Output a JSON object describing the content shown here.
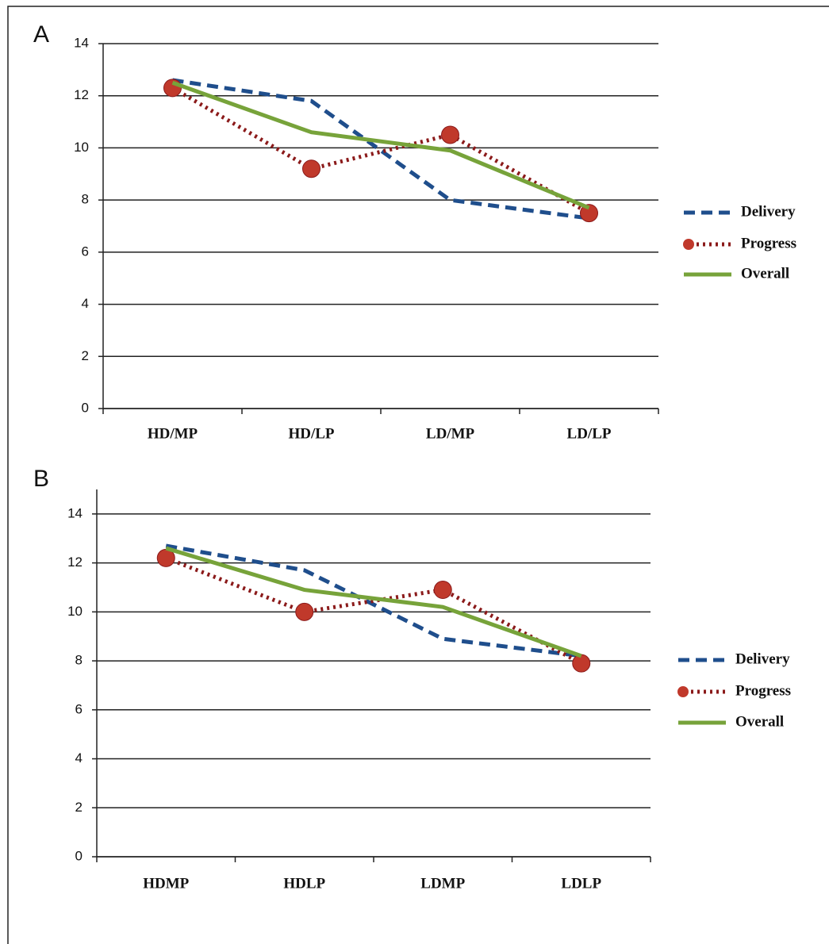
{
  "chart_data": [
    {
      "type": "line",
      "title": "A",
      "categories": [
        "HD/MP",
        "HD/LP",
        "LD/MP",
        "LD/LP"
      ],
      "series": [
        {
          "name": "Delivery",
          "color": "#1f4e8c",
          "dash": "dashed",
          "marker": "none",
          "values": [
            12.6,
            11.8,
            8.0,
            7.3
          ]
        },
        {
          "name": "Progress",
          "color": "#8b1a1a",
          "dash": "dotted",
          "marker": "circle",
          "values": [
            12.3,
            9.2,
            10.5,
            7.5
          ]
        },
        {
          "name": "Overall",
          "color": "#77a33a",
          "dash": "solid",
          "marker": "none",
          "values": [
            12.5,
            10.6,
            9.9,
            7.7
          ]
        }
      ],
      "ylim": [
        0,
        14
      ],
      "yticks": [
        0,
        2,
        4,
        6,
        8,
        10,
        12,
        14
      ],
      "grid": true,
      "legend": "right"
    },
    {
      "type": "line",
      "title": "B",
      "categories": [
        "HDMP",
        "HDLP",
        "LDMP",
        "LDLP"
      ],
      "series": [
        {
          "name": "Delivery",
          "color": "#1f4e8c",
          "dash": "dashed",
          "marker": "none",
          "values": [
            12.7,
            11.7,
            8.9,
            8.2
          ]
        },
        {
          "name": "Progress",
          "color": "#8b1a1a",
          "dash": "dotted",
          "marker": "circle",
          "values": [
            12.2,
            10.0,
            10.9,
            7.9
          ]
        },
        {
          "name": "Overall",
          "color": "#77a33a",
          "dash": "solid",
          "marker": "none",
          "values": [
            12.6,
            10.9,
            10.2,
            8.2
          ]
        }
      ],
      "ylim": [
        0,
        15
      ],
      "yticks": [
        0,
        2,
        4,
        6,
        8,
        10,
        12,
        14
      ],
      "grid": true,
      "legend": "right"
    }
  ]
}
